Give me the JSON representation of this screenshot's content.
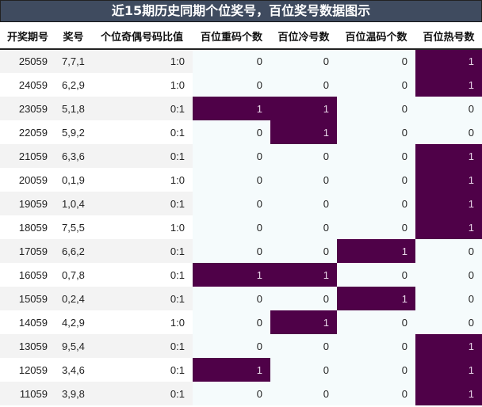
{
  "title": "近15期历史同期个位奖号，百位奖号数据图示",
  "colors": {
    "title_bg": "#3f4b5f",
    "highlight": "#4f0148",
    "highlight_text": "#e8d4e8",
    "stripe": "#f3f3f3",
    "num_bg": "#f5fbfc"
  },
  "columns": [
    "开奖期号",
    "奖号",
    "个位奇偶号码比值",
    "百位重码个数",
    "百位冷号数",
    "百位温码个数",
    "百位热号数"
  ],
  "rows": [
    {
      "issue": "25059",
      "number": "7,7,1",
      "ratio": "1:0",
      "repeat": "0",
      "cold": "0",
      "warm": "0",
      "hot": "1"
    },
    {
      "issue": "24059",
      "number": "6,2,9",
      "ratio": "1:0",
      "repeat": "0",
      "cold": "0",
      "warm": "0",
      "hot": "1"
    },
    {
      "issue": "23059",
      "number": "5,1,8",
      "ratio": "0:1",
      "repeat": "1",
      "cold": "1",
      "warm": "0",
      "hot": "0"
    },
    {
      "issue": "22059",
      "number": "5,9,2",
      "ratio": "0:1",
      "repeat": "0",
      "cold": "1",
      "warm": "0",
      "hot": "0"
    },
    {
      "issue": "21059",
      "number": "6,3,6",
      "ratio": "0:1",
      "repeat": "0",
      "cold": "0",
      "warm": "0",
      "hot": "1"
    },
    {
      "issue": "20059",
      "number": "0,1,9",
      "ratio": "1:0",
      "repeat": "0",
      "cold": "0",
      "warm": "0",
      "hot": "1"
    },
    {
      "issue": "19059",
      "number": "1,0,4",
      "ratio": "0:1",
      "repeat": "0",
      "cold": "0",
      "warm": "0",
      "hot": "1"
    },
    {
      "issue": "18059",
      "number": "7,5,5",
      "ratio": "1:0",
      "repeat": "0",
      "cold": "0",
      "warm": "0",
      "hot": "1"
    },
    {
      "issue": "17059",
      "number": "6,6,2",
      "ratio": "0:1",
      "repeat": "0",
      "cold": "0",
      "warm": "1",
      "hot": "0"
    },
    {
      "issue": "16059",
      "number": "0,7,8",
      "ratio": "0:1",
      "repeat": "1",
      "cold": "1",
      "warm": "0",
      "hot": "0"
    },
    {
      "issue": "15059",
      "number": "0,2,4",
      "ratio": "0:1",
      "repeat": "0",
      "cold": "0",
      "warm": "1",
      "hot": "0"
    },
    {
      "issue": "14059",
      "number": "4,2,9",
      "ratio": "1:0",
      "repeat": "0",
      "cold": "1",
      "warm": "0",
      "hot": "0"
    },
    {
      "issue": "13059",
      "number": "9,5,4",
      "ratio": "0:1",
      "repeat": "0",
      "cold": "0",
      "warm": "0",
      "hot": "1"
    },
    {
      "issue": "12059",
      "number": "3,4,6",
      "ratio": "0:1",
      "repeat": "1",
      "cold": "0",
      "warm": "0",
      "hot": "1"
    },
    {
      "issue": "11059",
      "number": "3,9,8",
      "ratio": "0:1",
      "repeat": "0",
      "cold": "0",
      "warm": "0",
      "hot": "1"
    }
  ]
}
